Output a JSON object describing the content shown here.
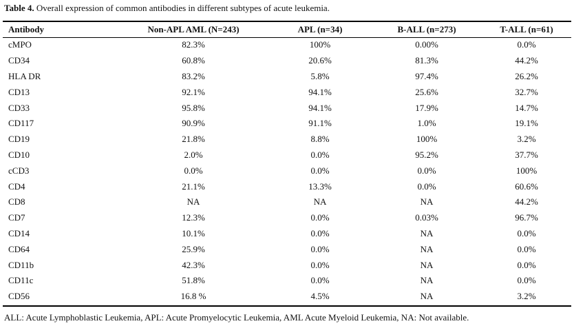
{
  "caption": {
    "label": "Table 4.",
    "text": " Overall expression of common antibodies in different subtypes of acute leukemia."
  },
  "table": {
    "headers": [
      "Antibody",
      "Non-APL AML (N=243)",
      "APL (n=34)",
      "B-ALL (n=273)",
      "T-ALL (n=61)"
    ],
    "rows": [
      [
        "cMPO",
        "82.3%",
        "100%",
        "0.00%",
        "0.0%"
      ],
      [
        "CD34",
        "60.8%",
        "20.6%",
        "81.3%",
        "44.2%"
      ],
      [
        "HLA DR",
        "83.2%",
        "5.8%",
        "97.4%",
        "26.2%"
      ],
      [
        "CD13",
        "92.1%",
        "94.1%",
        "25.6%",
        "32.7%"
      ],
      [
        "CD33",
        "95.8%",
        "94.1%",
        "17.9%",
        "14.7%"
      ],
      [
        "CD117",
        "90.9%",
        "91.1%",
        "1.0%",
        "19.1%"
      ],
      [
        "CD19",
        "21.8%",
        "8.8%",
        "100%",
        "3.2%"
      ],
      [
        "CD10",
        "2.0%",
        "0.0%",
        "95.2%",
        "37.7%"
      ],
      [
        "cCD3",
        "0.0%",
        "0.0%",
        "0.0%",
        "100%"
      ],
      [
        "CD4",
        "21.1%",
        "13.3%",
        "0.0%",
        "60.6%"
      ],
      [
        "CD8",
        "NA",
        "NA",
        "NA",
        "44.2%"
      ],
      [
        "CD7",
        "12.3%",
        "0.0%",
        "0.03%",
        "96.7%"
      ],
      [
        "CD14",
        "10.1%",
        "0.0%",
        "NA",
        "0.0%"
      ],
      [
        "CD64",
        "25.9%",
        "0.0%",
        "NA",
        "0.0%"
      ],
      [
        "CD11b",
        "42.3%",
        "0.0%",
        "NA",
        "0.0%"
      ],
      [
        "CD11c",
        "51.8%",
        "0.0%",
        "NA",
        "0.0%"
      ],
      [
        "CD56",
        "16.8 %",
        "4.5%",
        "NA",
        "3.2%"
      ]
    ]
  },
  "footnote": "ALL: Acute Lymphoblastic Leukemia, APL: Acute Promyelocytic Leukemia, AML Acute Myeloid Leukemia, NA: Not available."
}
